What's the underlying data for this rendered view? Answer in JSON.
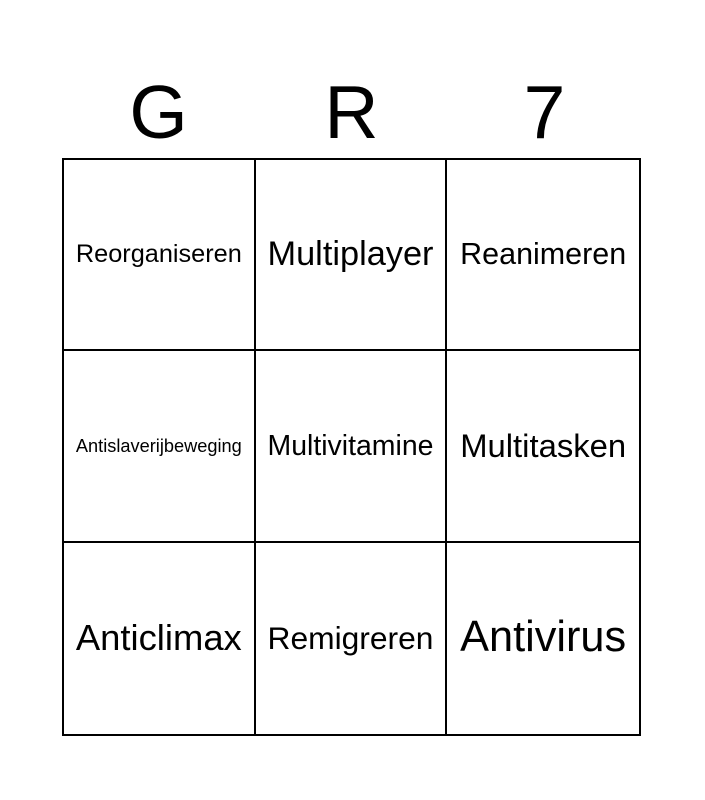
{
  "page": {
    "background_color": "#ffffff",
    "text_color": "#000000",
    "grid_line_color": "#000000"
  },
  "header": {
    "title_letters": [
      "G",
      "R",
      "7"
    ]
  },
  "board": {
    "rows": [
      [
        "Reorganiseren",
        "Multiplayer",
        "Reanimeren"
      ],
      [
        "Antislaverijbeweging",
        "Multivitamine",
        "Multitasken"
      ],
      [
        "Anticlimax",
        "Remigreren",
        "Antivirus"
      ]
    ]
  }
}
